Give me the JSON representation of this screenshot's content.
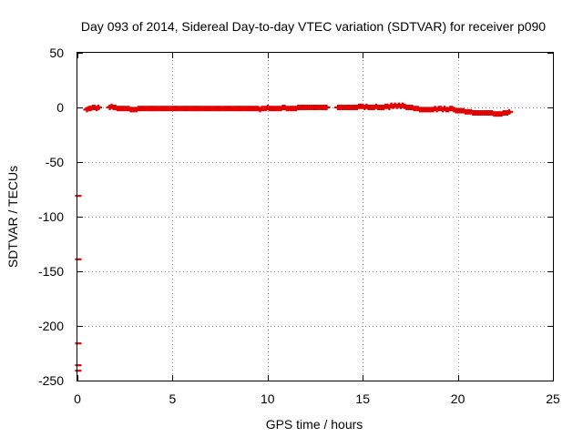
{
  "chart_data": {
    "type": "scatter",
    "title": "Day 093 of 2014, Sidereal Day-to-day VTEC variation (SDTVAR) for receiver p090",
    "xlabel": "GPS time / hours",
    "ylabel": "SDTVAR / TECUs",
    "xlim": [
      0,
      25
    ],
    "ylim": [
      -250,
      50
    ],
    "xticks": [
      0,
      5,
      10,
      15,
      20,
      25
    ],
    "yticks": [
      50,
      0,
      -50,
      -100,
      -150,
      -200,
      -250
    ],
    "xtick_labels": [
      "0",
      "5",
      "10",
      "15",
      "20",
      "25"
    ],
    "ytick_labels": [
      "50",
      "0",
      "-50",
      "-100",
      "-150",
      "-200",
      "-250"
    ],
    "grid": true,
    "marker": "plus",
    "color": "#e00000",
    "series": [
      {
        "name": "SDTVAR",
        "outliers": [
          {
            "x": 0.02,
            "y": -81
          },
          {
            "x": 0.02,
            "y": -139
          },
          {
            "x": 0.02,
            "y": -216
          },
          {
            "x": 0.02,
            "y": -236
          },
          {
            "x": 0.02,
            "y": -241
          }
        ],
        "segments": [
          {
            "x": [
              0.5,
              0.6,
              0.7,
              0.8,
              0.9,
              1.0,
              1.1
            ],
            "y": [
              -2,
              -1,
              -1,
              0,
              0,
              -1,
              0
            ]
          },
          {
            "x": [
              1.7,
              1.8,
              1.9,
              2.0,
              2.1,
              2.2,
              2.3,
              2.4,
              2.5,
              2.6,
              2.7,
              2.8,
              2.9,
              3.0,
              3.1,
              3.2,
              3.3,
              3.4,
              3.5,
              3.6,
              3.7,
              3.8,
              3.9,
              4.0,
              4.1,
              4.2,
              4.3,
              4.4,
              4.5,
              4.6,
              4.7,
              4.8,
              4.9,
              5.0,
              5.1,
              5.2,
              5.3,
              5.4,
              5.5,
              5.6,
              5.7,
              5.8,
              5.9,
              6.0,
              6.1,
              6.2,
              6.3,
              6.4,
              6.5,
              6.6,
              6.7,
              6.8,
              6.9,
              7.0,
              7.1,
              7.2,
              7.3,
              7.4,
              7.5,
              7.6,
              7.7
            ],
            "y": [
              0,
              1,
              0,
              0,
              -1,
              -1,
              -1,
              -1,
              -1,
              -1,
              -1,
              -2,
              -2,
              -2,
              -2,
              -1,
              -1,
              -1,
              -1,
              -1,
              -1,
              -1,
              -1,
              -1,
              -1,
              -1,
              -1,
              -1,
              -1,
              -1,
              -1,
              -1,
              -1,
              -1,
              -1,
              -1,
              -1,
              -1,
              -1,
              -1,
              -1,
              -1,
              -1,
              -1,
              -1,
              -1,
              -1,
              -1,
              -1,
              -1,
              -1,
              -1,
              -1,
              -1,
              -1,
              -1,
              -1,
              -1,
              -1,
              -1,
              -1
            ]
          },
          {
            "x": [
              7.8,
              7.9,
              8.0,
              8.1,
              8.2,
              8.3,
              8.4,
              8.5,
              8.6,
              8.7,
              8.8,
              8.9,
              9.0,
              9.1,
              9.2,
              9.3,
              9.4,
              9.5,
              9.6,
              9.7,
              9.8,
              9.9,
              10.0,
              10.1,
              10.2,
              10.3,
              10.4,
              10.5,
              10.6,
              10.7,
              10.8,
              10.9,
              11.0,
              11.1,
              11.2,
              11.3,
              11.4,
              11.5,
              11.6,
              11.7,
              11.8,
              11.9,
              12.0,
              12.1,
              12.2,
              12.3,
              12.4,
              12.5,
              12.6,
              12.7,
              12.8,
              12.9,
              13.0,
              13.1
            ],
            "y": [
              -1,
              -1,
              -1,
              -1,
              -1,
              -1,
              -1,
              -1,
              -1,
              -1,
              -1,
              -1,
              -1,
              -1,
              -1,
              -1,
              -1,
              -1,
              -2,
              -1,
              -1,
              -1,
              0,
              -1,
              -1,
              -1,
              -1,
              -1,
              -1,
              -1,
              0,
              0,
              -1,
              -1,
              -1,
              -1,
              -1,
              -1,
              0,
              0,
              0,
              0,
              0,
              0,
              0,
              0,
              0,
              0,
              0,
              0,
              0,
              0,
              0,
              0
            ]
          },
          {
            "x": [
              13.7,
              13.8,
              13.9,
              14.0,
              14.1,
              14.2,
              14.3,
              14.4,
              14.5,
              14.6,
              14.7,
              14.8,
              14.9,
              15.0,
              15.1,
              15.2,
              15.3,
              15.4,
              15.5,
              15.6,
              15.7,
              15.8,
              15.9,
              16.0,
              16.1,
              16.2,
              16.3,
              16.4,
              16.5,
              16.6,
              16.7,
              16.8,
              16.9,
              17.0,
              17.1,
              17.2,
              17.3,
              17.4,
              17.5,
              17.6,
              17.7,
              17.8,
              17.9,
              18.0,
              18.1,
              18.2,
              18.3,
              18.4,
              18.5,
              18.6,
              18.7,
              18.8,
              18.9,
              19.0,
              19.1,
              19.2,
              19.3,
              19.4,
              19.5,
              19.6,
              19.7,
              19.8,
              19.9,
              20.0,
              20.1,
              20.2,
              20.3,
              20.4,
              20.5,
              20.6,
              20.7,
              20.8,
              20.9,
              21.0,
              21.1,
              21.2,
              21.3,
              21.4,
              21.5,
              21.6,
              21.7,
              21.8,
              21.9,
              22.0,
              22.1,
              22.2,
              22.3,
              22.4,
              22.5,
              22.6,
              22.7
            ],
            "y": [
              0,
              0,
              0,
              0,
              0,
              0,
              0,
              0,
              0,
              0,
              0,
              1,
              1,
              1,
              0,
              1,
              0,
              0,
              0,
              0,
              1,
              0,
              0,
              0,
              0,
              1,
              1,
              0,
              2,
              1,
              2,
              1,
              2,
              1,
              2,
              1,
              0,
              0,
              0,
              0,
              -1,
              -1,
              -1,
              -2,
              -2,
              -2,
              -2,
              -2,
              -2,
              -2,
              -2,
              -1,
              -2,
              -1,
              -1,
              -2,
              -1,
              -2,
              -2,
              -1,
              -1,
              -2,
              -3,
              -3,
              -3,
              -3,
              -3,
              -4,
              -4,
              -4,
              -4,
              -5,
              -5,
              -5,
              -5,
              -5,
              -5,
              -5,
              -5,
              -5,
              -5,
              -5,
              -6,
              -6,
              -6,
              -6,
              -6,
              -5,
              -5,
              -5,
              -4
            ]
          }
        ]
      }
    ]
  }
}
